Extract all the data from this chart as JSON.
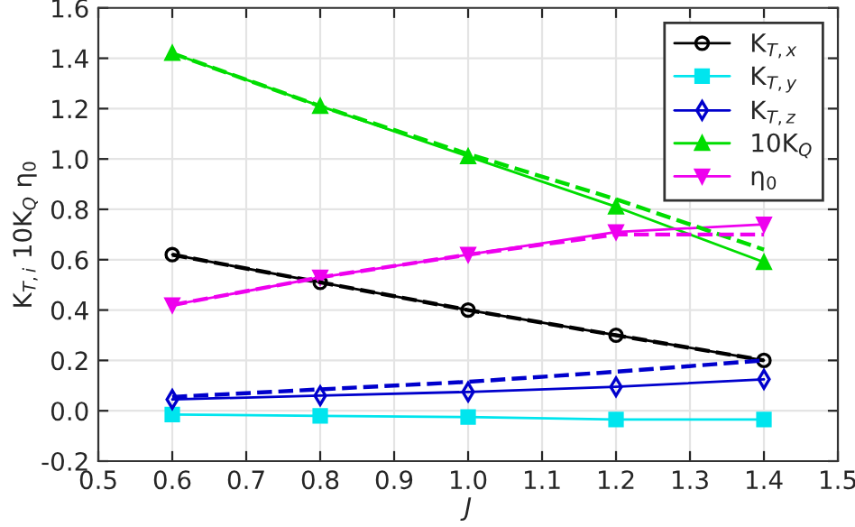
{
  "chart_data": {
    "type": "line",
    "xlabel": "J",
    "ylabel": "K$_{T,i}$ 10K$_{Q}$ η$_{0}$",
    "x": [
      0.6,
      0.8,
      1.0,
      1.2,
      1.4
    ],
    "series": [
      {
        "name": "K$_{T,x}$",
        "color": "#000000",
        "marker": "circle",
        "line_style": "solid",
        "values": [
          0.62,
          0.51,
          0.4,
          0.3,
          0.2
        ]
      },
      {
        "name": "K$_{T,y}$",
        "color": "#00e5ee",
        "marker": "square",
        "line_style": "solid",
        "values": [
          -0.015,
          -0.02,
          -0.025,
          -0.035,
          -0.035
        ]
      },
      {
        "name": "K$_{T,z}$",
        "color": "#0000cc",
        "marker": "diamond",
        "line_style": "solid",
        "values": [
          0.045,
          0.06,
          0.075,
          0.095,
          0.125
        ]
      },
      {
        "name": "10K$_{Q}$",
        "color": "#00dd00",
        "marker": "triangle",
        "line_style": "solid",
        "values": [
          1.42,
          1.21,
          1.01,
          0.81,
          0.59
        ]
      },
      {
        "name": "η$_{0}$",
        "color": "#ee00ee",
        "marker": "triangle_down",
        "line_style": "solid",
        "values": [
          0.42,
          0.53,
          0.62,
          0.71,
          0.74
        ]
      },
      {
        "color": "#000000",
        "marker": "none",
        "line_style": "dashed",
        "values": [
          0.62,
          0.51,
          0.4,
          0.3,
          0.2
        ]
      },
      {
        "color": "#0000cc",
        "marker": "none",
        "line_style": "dashed",
        "values": [
          0.055,
          0.085,
          0.115,
          0.155,
          0.2
        ]
      },
      {
        "color": "#00dd00",
        "marker": "none",
        "line_style": "dashed",
        "values": [
          1.42,
          1.21,
          1.02,
          0.84,
          0.64
        ]
      },
      {
        "color": "#ee00ee",
        "marker": "none",
        "line_style": "dashed",
        "values": [
          0.42,
          0.53,
          0.62,
          0.7,
          0.7
        ]
      }
    ],
    "xlim": [
      0.5,
      1.5
    ],
    "xticks": [
      0.5,
      {
        "value": 0.6,
        "label": "0.6"
      },
      {
        "value": 0.7,
        "label": "0.7"
      },
      {
        "value": 0.8,
        "label": "0.8"
      },
      {
        "value": 0.9,
        "label": "0.9"
      },
      {
        "value": 1.0,
        "label": "1.0"
      },
      {
        "value": 1.1,
        "label": "1.1"
      },
      {
        "value": 1.2,
        "label": "1.2"
      },
      {
        "value": 1.3,
        "label": "1.3"
      },
      {
        "value": 1.4,
        "label": "1.4"
      },
      1.5
    ],
    "ylim": [
      -0.2,
      1.6
    ],
    "yticks": [
      -0.2,
      {
        "value": 0.0,
        "label": "0.0"
      },
      0.2,
      0.4,
      0.6,
      0.8,
      {
        "value": 1.0,
        "label": "1.0"
      },
      1.2,
      1.4,
      1.6
    ],
    "grid": true,
    "legend": "top right"
  }
}
